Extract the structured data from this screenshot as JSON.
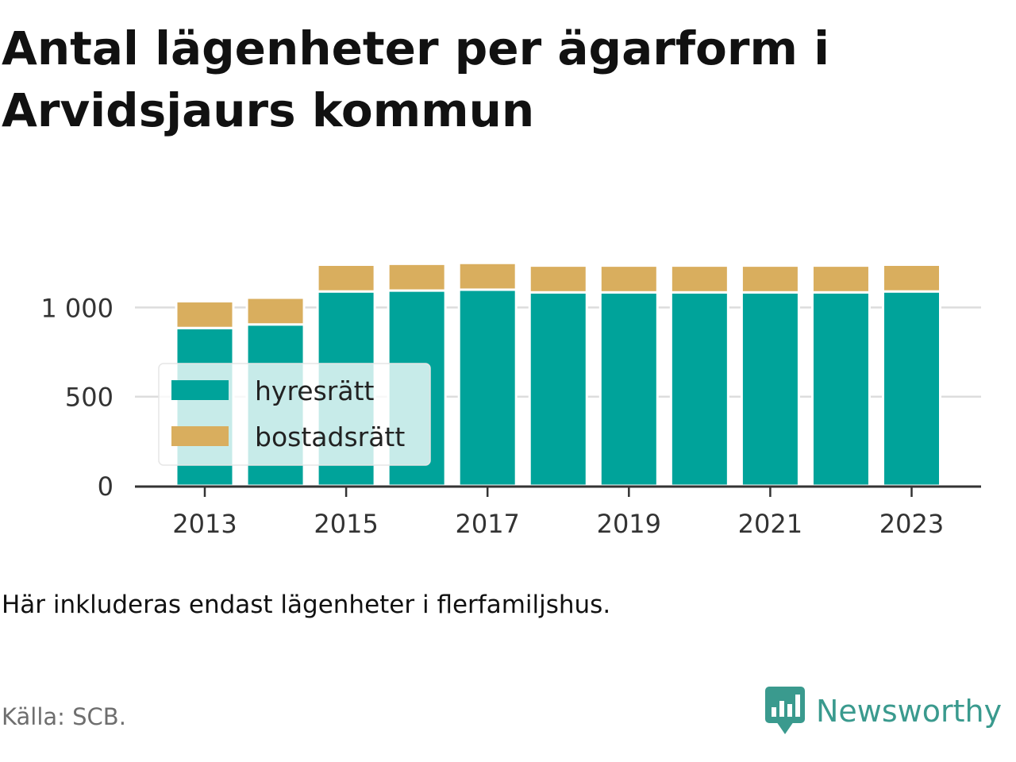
{
  "title": "Antal lägenheter per ägarform i Arvidsjaurs kommun",
  "note": "Här inkluderas endast lägenheter i flerfamiljshus.",
  "source": "Källa: SCB.",
  "brand": {
    "name": "Newsworthy",
    "icon": "newsworthy-logo-icon",
    "color": "#3a9a8e"
  },
  "chart_data": {
    "type": "bar",
    "stacked": true,
    "categories": [
      "2013",
      "2014",
      "2015",
      "2016",
      "2017",
      "2018",
      "2019",
      "2020",
      "2021",
      "2022",
      "2023"
    ],
    "x_tick_labels": [
      "2013",
      "2015",
      "2017",
      "2019",
      "2021",
      "2023"
    ],
    "y_tick_values": [
      0,
      500,
      1000
    ],
    "y_tick_labels": [
      "0",
      "500",
      "1 000"
    ],
    "ylim": [
      0,
      1250
    ],
    "grid": true,
    "legend_position": "bottom-left",
    "series": [
      {
        "name": "hyresrätt",
        "color": "#00a39a",
        "values": [
          885,
          905,
          1090,
          1095,
          1100,
          1085,
          1085,
          1085,
          1085,
          1085,
          1090
        ]
      },
      {
        "name": "bostadsrätt",
        "color": "#d9ae5e",
        "values": [
          150,
          150,
          150,
          150,
          150,
          150,
          150,
          150,
          150,
          150,
          150
        ]
      }
    ]
  }
}
